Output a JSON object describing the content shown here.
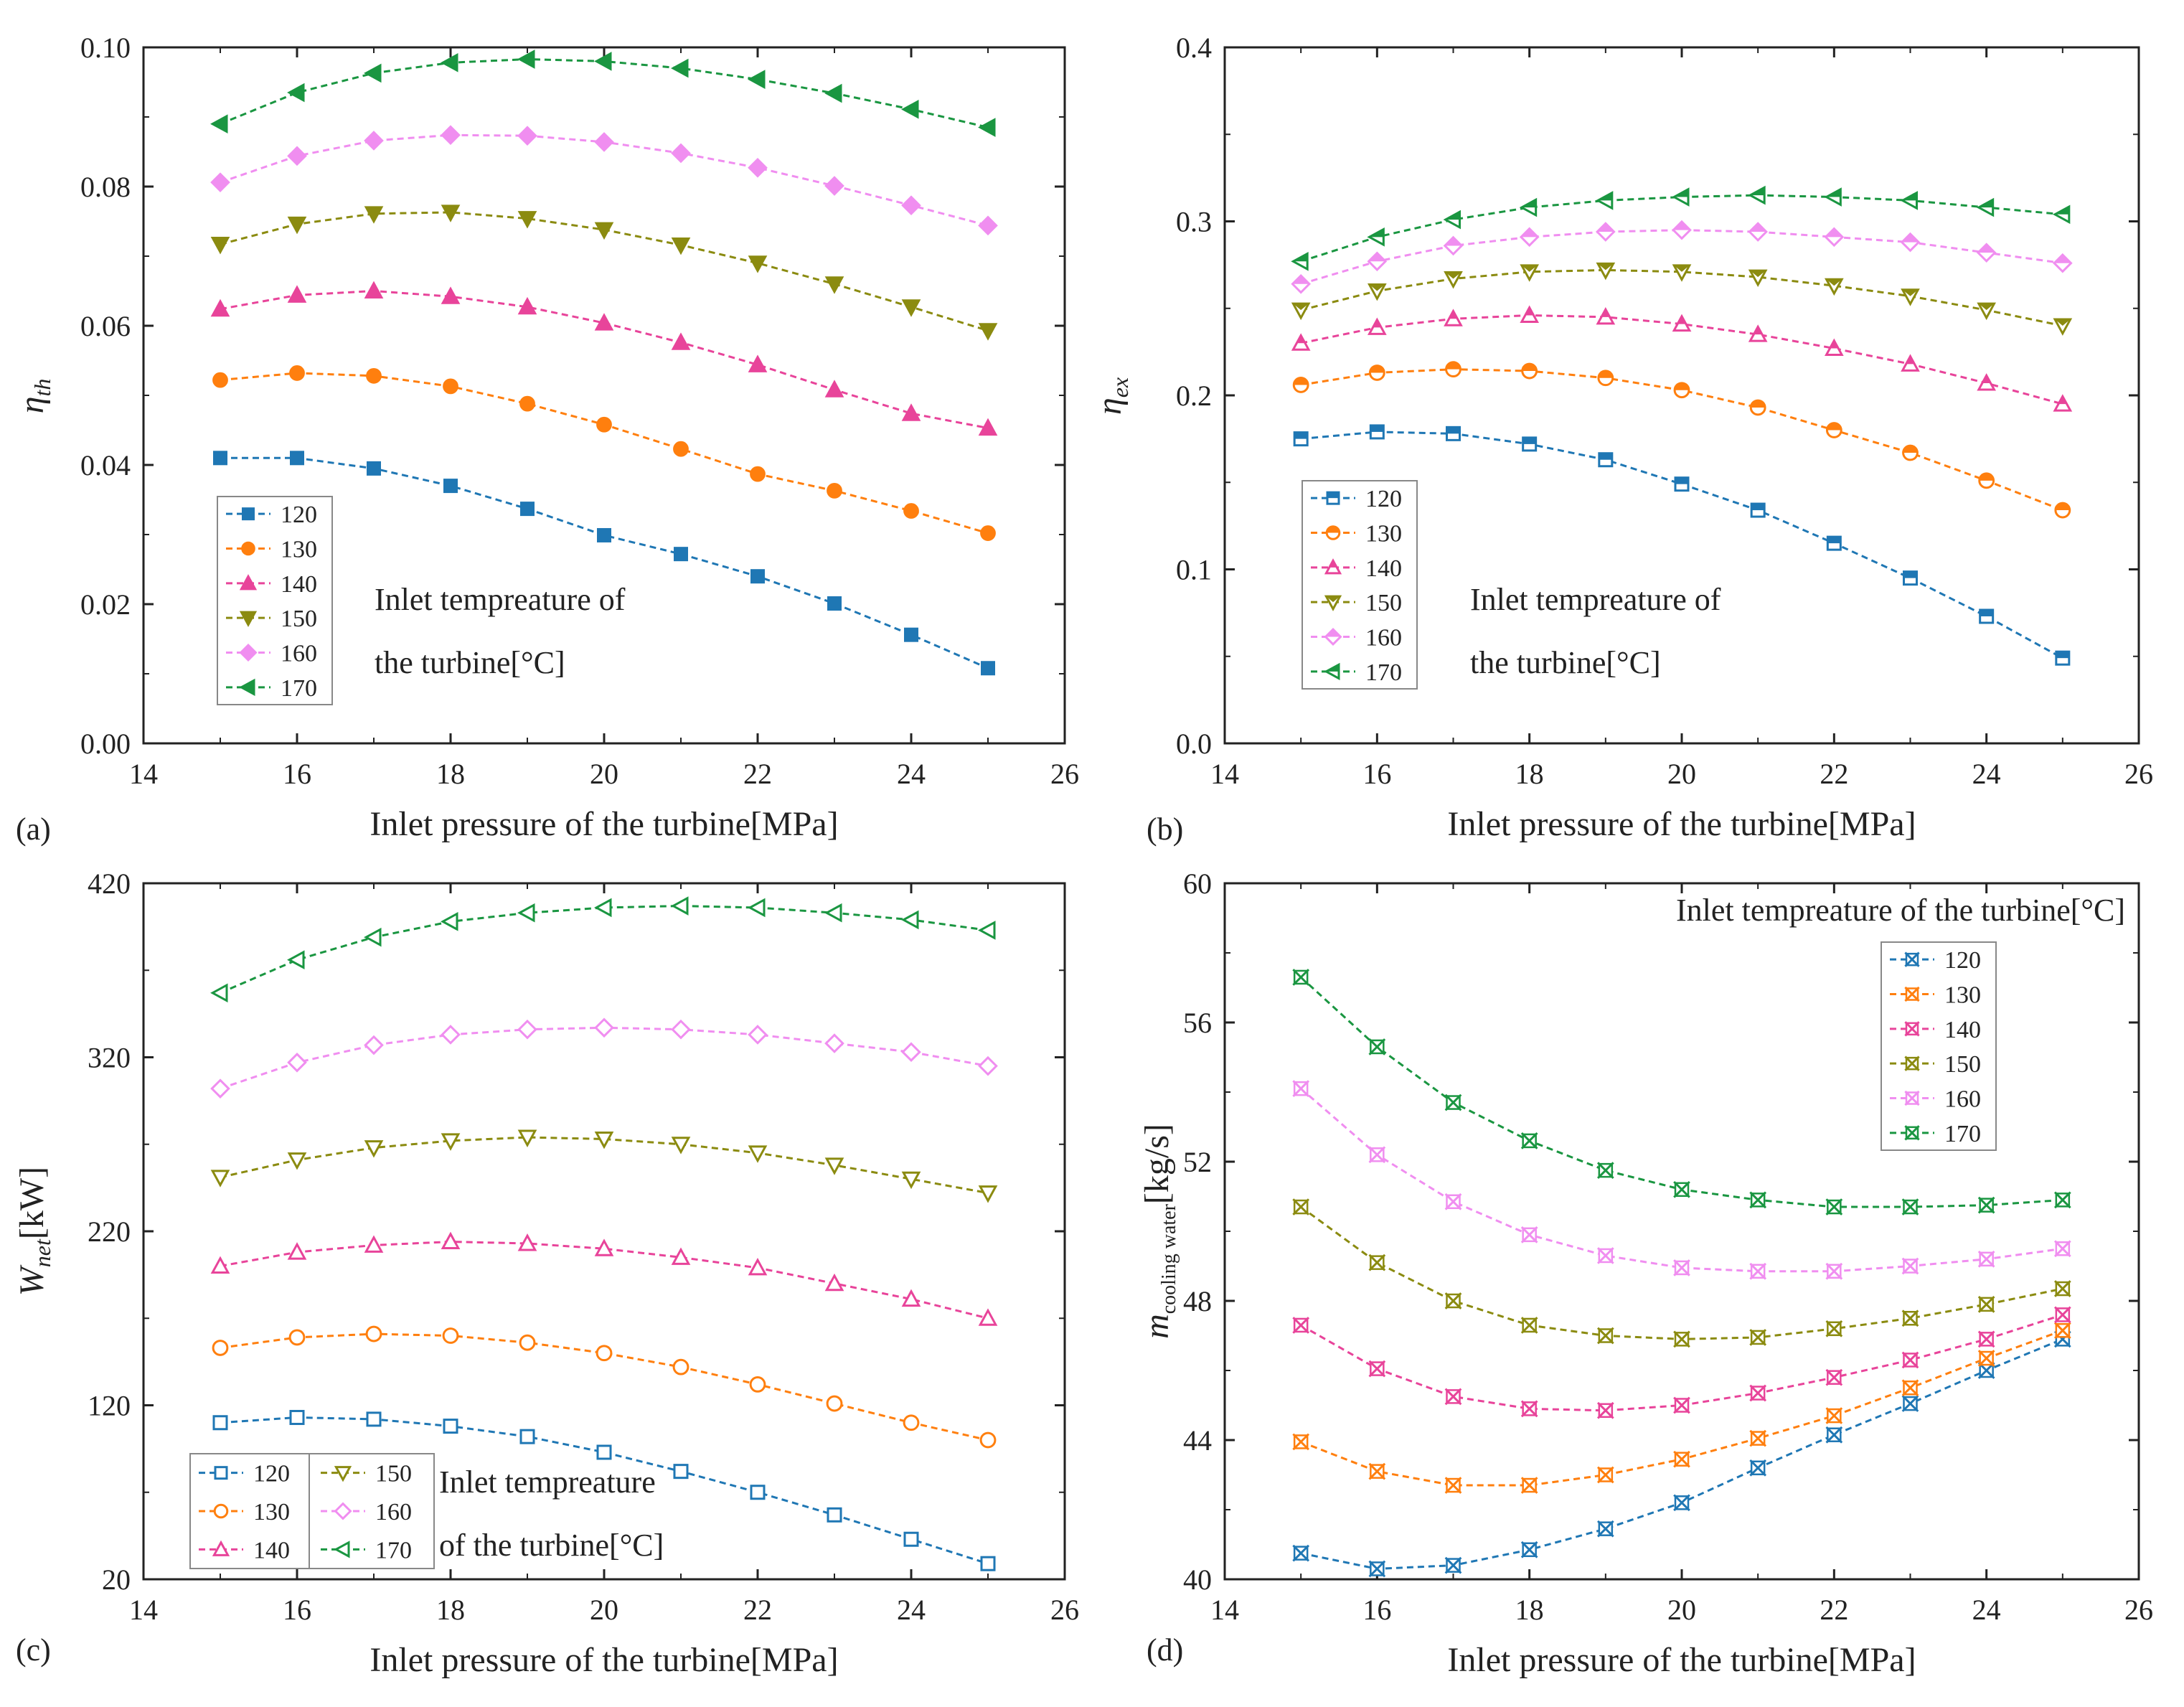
{
  "chart_data": [
    {
      "type": "line",
      "panel_label": "(a)",
      "ylabel": "η",
      "ylabel_sub": "th",
      "xlabel": "Inlet pressure of the turbine[MPa]",
      "xlim": [
        14,
        26
      ],
      "ylim": [
        0.0,
        0.1
      ],
      "xticks": [
        "14",
        "16",
        "18",
        "20",
        "22",
        "24",
        "26"
      ],
      "yticks": [
        "0.00",
        "0.02",
        "0.04",
        "0.06",
        "0.08",
        "0.10"
      ],
      "grid": false,
      "legend_title": [
        "Inlet tempreature of",
        "the turbine[°C]"
      ],
      "x": [
        15,
        16,
        17,
        18,
        19,
        20,
        21,
        22,
        23,
        24,
        25
      ],
      "series": [
        {
          "name": "120",
          "color": "#1f77b4",
          "values": [
            0.041,
            0.041,
            0.0395,
            0.037,
            0.0337,
            0.0299,
            0.0272,
            0.024,
            0.0201,
            0.0156,
            0.0108
          ]
        },
        {
          "name": "130",
          "color": "#ff7f0e",
          "values": [
            0.0522,
            0.0532,
            0.0528,
            0.0513,
            0.0488,
            0.0458,
            0.0423,
            0.0387,
            0.0363,
            0.0334,
            0.0302
          ]
        },
        {
          "name": "140",
          "color": "#e8449a",
          "values": [
            0.0624,
            0.0644,
            0.065,
            0.0642,
            0.0627,
            0.0604,
            0.0576,
            0.0544,
            0.0508,
            0.0474,
            0.0453
          ]
        },
        {
          "name": "150",
          "color": "#8b8b10",
          "values": [
            0.0717,
            0.0746,
            0.0761,
            0.0763,
            0.0754,
            0.0738,
            0.0716,
            0.069,
            0.066,
            0.0627,
            0.0593
          ]
        },
        {
          "name": "160",
          "color": "#f08ef0",
          "values": [
            0.0806,
            0.0844,
            0.0866,
            0.0874,
            0.0873,
            0.0864,
            0.0848,
            0.0827,
            0.0801,
            0.0773,
            0.0744
          ]
        },
        {
          "name": "170",
          "color": "#1a9641",
          "values": [
            0.089,
            0.0935,
            0.0963,
            0.0978,
            0.0983,
            0.098,
            0.097,
            0.0954,
            0.0934,
            0.0911,
            0.0885
          ]
        }
      ]
    },
    {
      "type": "line",
      "panel_label": "(b)",
      "ylabel": "η",
      "ylabel_sub": "ex",
      "xlabel": "Inlet pressure of the turbine[MPa]",
      "xlim": [
        14,
        26
      ],
      "ylim": [
        0.0,
        0.4
      ],
      "xticks": [
        "14",
        "16",
        "18",
        "20",
        "22",
        "24",
        "26"
      ],
      "yticks": [
        "0.0",
        "0.1",
        "0.2",
        "0.3",
        "0.4"
      ],
      "grid": false,
      "legend_title": [
        "Inlet tempreature of",
        "the turbine[°C]"
      ],
      "x": [
        15,
        16,
        17,
        18,
        19,
        20,
        21,
        22,
        23,
        24,
        25
      ],
      "series": [
        {
          "name": "120",
          "color": "#1f77b4",
          "values": [
            0.175,
            0.179,
            0.178,
            0.172,
            0.163,
            0.149,
            0.134,
            0.115,
            0.095,
            0.073,
            0.049
          ]
        },
        {
          "name": "130",
          "color": "#ff7f0e",
          "values": [
            0.206,
            0.213,
            0.215,
            0.214,
            0.21,
            0.203,
            0.193,
            0.18,
            0.167,
            0.151,
            0.134
          ]
        },
        {
          "name": "140",
          "color": "#e8449a",
          "values": [
            0.23,
            0.239,
            0.244,
            0.246,
            0.245,
            0.241,
            0.235,
            0.227,
            0.218,
            0.207,
            0.195
          ]
        },
        {
          "name": "150",
          "color": "#8b8b10",
          "values": [
            0.249,
            0.26,
            0.267,
            0.271,
            0.272,
            0.271,
            0.268,
            0.263,
            0.257,
            0.249,
            0.24
          ]
        },
        {
          "name": "160",
          "color": "#f08ef0",
          "values": [
            0.264,
            0.277,
            0.286,
            0.291,
            0.294,
            0.295,
            0.294,
            0.291,
            0.288,
            0.282,
            0.276
          ]
        },
        {
          "name": "170",
          "color": "#1a9641",
          "values": [
            0.277,
            0.291,
            0.301,
            0.308,
            0.312,
            0.314,
            0.315,
            0.314,
            0.312,
            0.308,
            0.304
          ]
        }
      ]
    },
    {
      "type": "line",
      "panel_label": "(c)",
      "ylabel": "W",
      "ylabel_sub": "net",
      "ylabel_suffix": "[kW]",
      "xlabel": "Inlet pressure of the turbine[MPa]",
      "xlim": [
        14,
        26
      ],
      "ylim": [
        20,
        420
      ],
      "xticks": [
        "14",
        "16",
        "18",
        "20",
        "22",
        "24",
        "26"
      ],
      "yticks": [
        "20",
        "120",
        "220",
        "320",
        "420"
      ],
      "grid": false,
      "legend_title": [
        "Inlet tempreature",
        "of the turbine[°C]"
      ],
      "x": [
        15,
        16,
        17,
        18,
        19,
        20,
        21,
        22,
        23,
        24,
        25
      ],
      "series": [
        {
          "name": "120",
          "color": "#1f77b4",
          "values": [
            110,
            113,
            112,
            108,
            102,
            93,
            82,
            70,
            57,
            43,
            29
          ]
        },
        {
          "name": "130",
          "color": "#ff7f0e",
          "values": [
            153,
            159,
            161,
            160,
            156,
            150,
            142,
            132,
            121,
            110,
            100
          ]
        },
        {
          "name": "140",
          "color": "#e8449a",
          "values": [
            200,
            208,
            212,
            214,
            213,
            210,
            205,
            199,
            190,
            181,
            170
          ]
        },
        {
          "name": "150",
          "color": "#8b8b10",
          "values": [
            251,
            261,
            268,
            272,
            274,
            273,
            270,
            265,
            258,
            250,
            242
          ]
        },
        {
          "name": "160",
          "color": "#f08ef0",
          "values": [
            302,
            317,
            327,
            333,
            336,
            337,
            336,
            333,
            328,
            323,
            315
          ]
        },
        {
          "name": "170",
          "color": "#1a9641",
          "values": [
            357,
            376,
            389,
            398,
            403,
            406,
            407,
            406,
            403,
            399,
            393
          ]
        }
      ]
    },
    {
      "type": "line",
      "panel_label": "(d)",
      "ylabel": "m",
      "ylabel_sub": "cooling water",
      "ylabel_suffix": "[kg/s]",
      "xlabel": "Inlet pressure of the turbine[MPa]",
      "xlim": [
        14,
        26
      ],
      "ylim": [
        40,
        60
      ],
      "xticks": [
        "14",
        "16",
        "18",
        "20",
        "22",
        "24",
        "26"
      ],
      "yticks": [
        "40",
        "44",
        "48",
        "52",
        "56",
        "60"
      ],
      "grid": false,
      "legend_title": [
        "Inlet tempreature of the turbine[°C]"
      ],
      "x": [
        15,
        16,
        17,
        18,
        19,
        20,
        21,
        22,
        23,
        24,
        25
      ],
      "series": [
        {
          "name": "120",
          "color": "#1f77b4",
          "values": [
            40.75,
            40.3,
            40.4,
            40.85,
            41.45,
            42.2,
            43.2,
            44.15,
            45.05,
            46.0,
            46.9
          ]
        },
        {
          "name": "130",
          "color": "#ff7f0e",
          "values": [
            43.95,
            43.1,
            42.7,
            42.7,
            43.0,
            43.45,
            44.05,
            44.7,
            45.5,
            46.35,
            47.15
          ]
        },
        {
          "name": "140",
          "color": "#e8449a",
          "values": [
            47.3,
            46.05,
            45.25,
            44.9,
            44.85,
            45.0,
            45.35,
            45.8,
            46.3,
            46.9,
            47.6
          ]
        },
        {
          "name": "150",
          "color": "#8b8b10",
          "values": [
            50.7,
            49.1,
            48.0,
            47.3,
            47.0,
            46.9,
            46.95,
            47.2,
            47.5,
            47.9,
            48.35
          ]
        },
        {
          "name": "160",
          "color": "#f08ef0",
          "values": [
            54.1,
            52.2,
            50.85,
            49.9,
            49.3,
            48.95,
            48.85,
            48.85,
            49.0,
            49.2,
            49.5
          ]
        },
        {
          "name": "170",
          "color": "#1a9641",
          "values": [
            57.3,
            55.3,
            53.7,
            52.6,
            51.75,
            51.2,
            50.9,
            50.7,
            50.7,
            50.75,
            50.9
          ]
        }
      ]
    }
  ]
}
